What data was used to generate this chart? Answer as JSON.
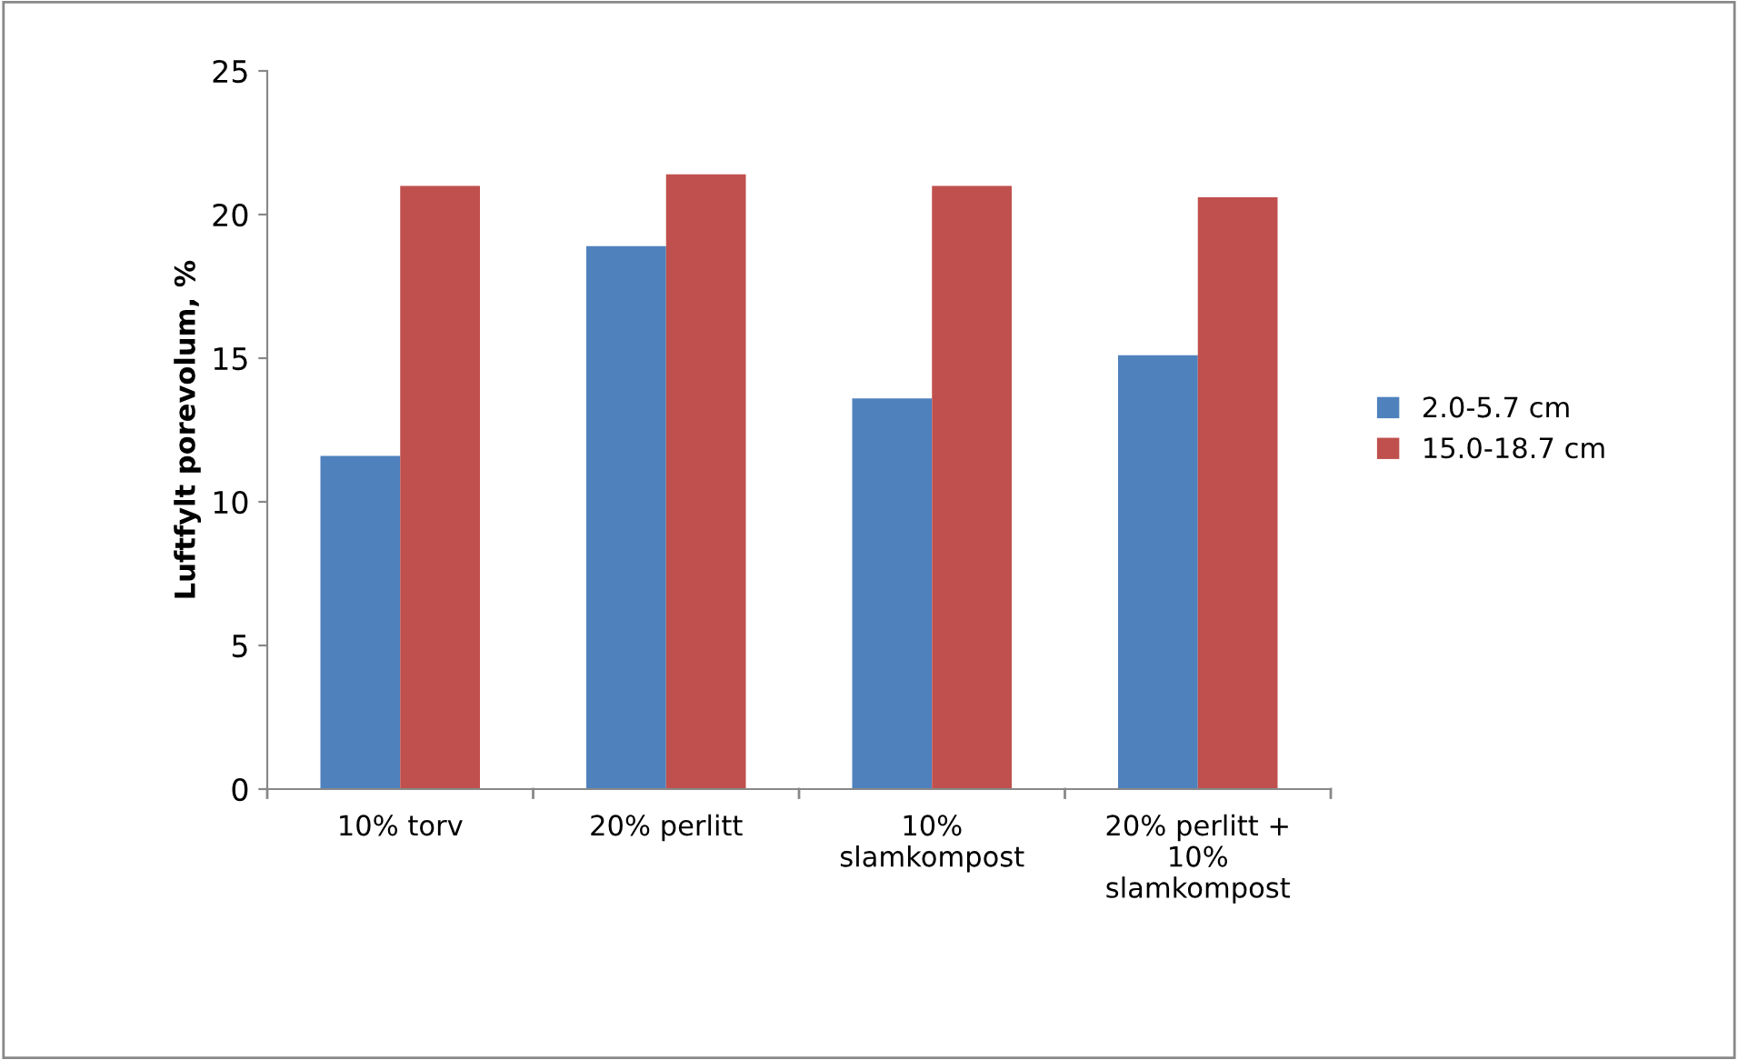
{
  "chart_data": {
    "type": "bar",
    "ylabel": "Luftfylt porevolum, %",
    "categories": [
      "10% torv",
      "20% perlitt",
      "10%\nslamkompost",
      "20% perlitt +\n10%\nslamkompost"
    ],
    "series": [
      {
        "name": "2.0-5.7 cm",
        "color": "#4f81bd",
        "values": [
          11.6,
          18.9,
          13.6,
          15.1
        ]
      },
      {
        "name": "15.0-18.7 cm",
        "color": "#c0504d",
        "values": [
          21.0,
          21.4,
          21.0,
          20.6
        ]
      }
    ],
    "ylim": [
      0,
      25
    ],
    "yticks": [
      0,
      5,
      10,
      15,
      20,
      25
    ],
    "grid": false,
    "legend": "right"
  }
}
